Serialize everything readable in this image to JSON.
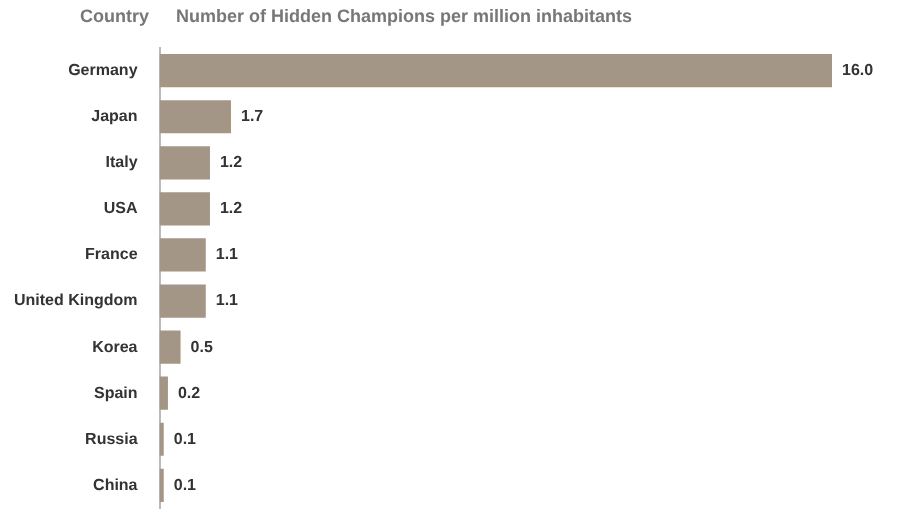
{
  "chart_data": {
    "type": "bar",
    "orientation": "horizontal",
    "title": "Number of Hidden Champions per million inhabitants",
    "ylabel": "Country",
    "categories": [
      "Germany",
      "Japan",
      "Italy",
      "USA",
      "France",
      "United Kingdom",
      "Korea",
      "Spain",
      "Russia",
      "China"
    ],
    "values": [
      16.0,
      1.7,
      1.2,
      1.2,
      1.1,
      1.1,
      0.5,
      0.2,
      0.1,
      0.1
    ],
    "value_labels": [
      "16.0",
      "1.7",
      "1.2",
      "1.2",
      "1.1",
      "1.1",
      "0.5",
      "0.2",
      "0.1",
      "0.1"
    ],
    "color": "#a39686"
  }
}
